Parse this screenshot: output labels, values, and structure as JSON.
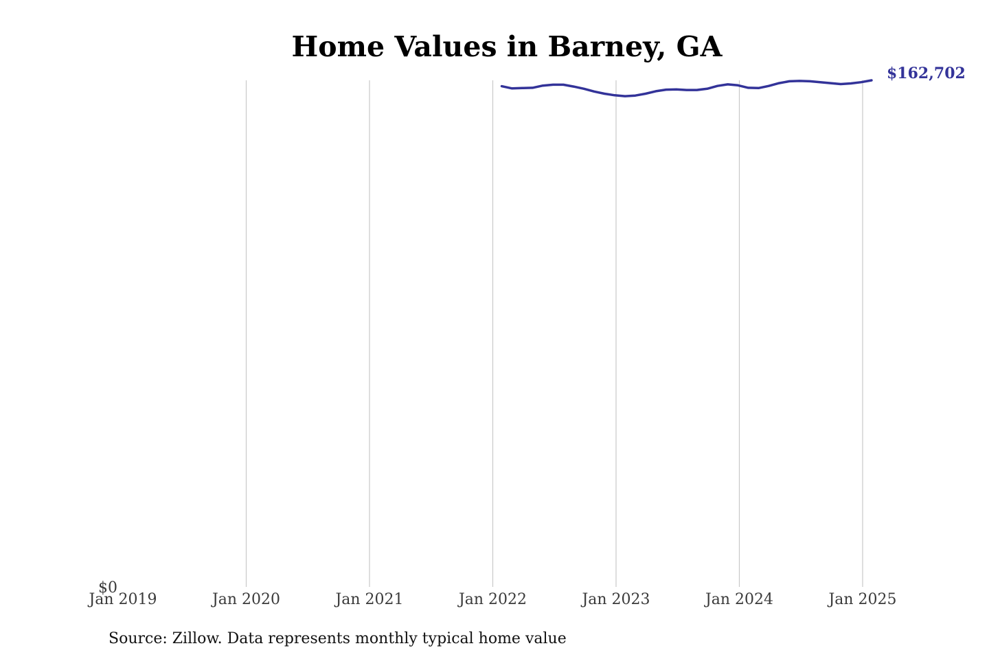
{
  "chart_data": {
    "type": "line",
    "title": "Home Values in Barney, GA",
    "xlabel": "",
    "ylabel": "",
    "x_ticks": [
      "Jan 2019",
      "Jan 2020",
      "Jan 2021",
      "Jan 2022",
      "Jan 2023",
      "Jan 2024",
      "Jan 2025"
    ],
    "y_ticks": [
      "$0"
    ],
    "xlim": [
      "2019-01",
      "2025-02"
    ],
    "ylim": [
      0,
      162702
    ],
    "grid": "vertical",
    "series": [
      {
        "color": "#333399",
        "end_label": "$162,702",
        "points": [
          {
            "x": "2022-01",
            "y": 160800
          },
          {
            "x": "2022-02",
            "y": 160100
          },
          {
            "x": "2022-03",
            "y": 160200
          },
          {
            "x": "2022-04",
            "y": 160300
          },
          {
            "x": "2022-05",
            "y": 161000
          },
          {
            "x": "2022-06",
            "y": 161300
          },
          {
            "x": "2022-07",
            "y": 161300
          },
          {
            "x": "2022-08",
            "y": 160700
          },
          {
            "x": "2022-09",
            "y": 160000
          },
          {
            "x": "2022-10",
            "y": 159100
          },
          {
            "x": "2022-11",
            "y": 158400
          },
          {
            "x": "2022-12",
            "y": 157900
          },
          {
            "x": "2023-01",
            "y": 157600
          },
          {
            "x": "2023-02",
            "y": 157800
          },
          {
            "x": "2023-03",
            "y": 158400
          },
          {
            "x": "2023-04",
            "y": 159200
          },
          {
            "x": "2023-05",
            "y": 159700
          },
          {
            "x": "2023-06",
            "y": 159800
          },
          {
            "x": "2023-07",
            "y": 159600
          },
          {
            "x": "2023-08",
            "y": 159600
          },
          {
            "x": "2023-09",
            "y": 160000
          },
          {
            "x": "2023-10",
            "y": 160900
          },
          {
            "x": "2023-11",
            "y": 161400
          },
          {
            "x": "2023-12",
            "y": 161100
          },
          {
            "x": "2024-01",
            "y": 160300
          },
          {
            "x": "2024-02",
            "y": 160200
          },
          {
            "x": "2024-03",
            "y": 160900
          },
          {
            "x": "2024-04",
            "y": 161800
          },
          {
            "x": "2024-05",
            "y": 162400
          },
          {
            "x": "2024-06",
            "y": 162500
          },
          {
            "x": "2024-07",
            "y": 162400
          },
          {
            "x": "2024-08",
            "y": 162100
          },
          {
            "x": "2024-09",
            "y": 161800
          },
          {
            "x": "2024-10",
            "y": 161500
          },
          {
            "x": "2024-11",
            "y": 161700
          },
          {
            "x": "2024-12",
            "y": 162100
          },
          {
            "x": "2025-01",
            "y": 162702
          }
        ]
      }
    ],
    "source": "Source: Zillow. Data represents monthly typical home value"
  }
}
